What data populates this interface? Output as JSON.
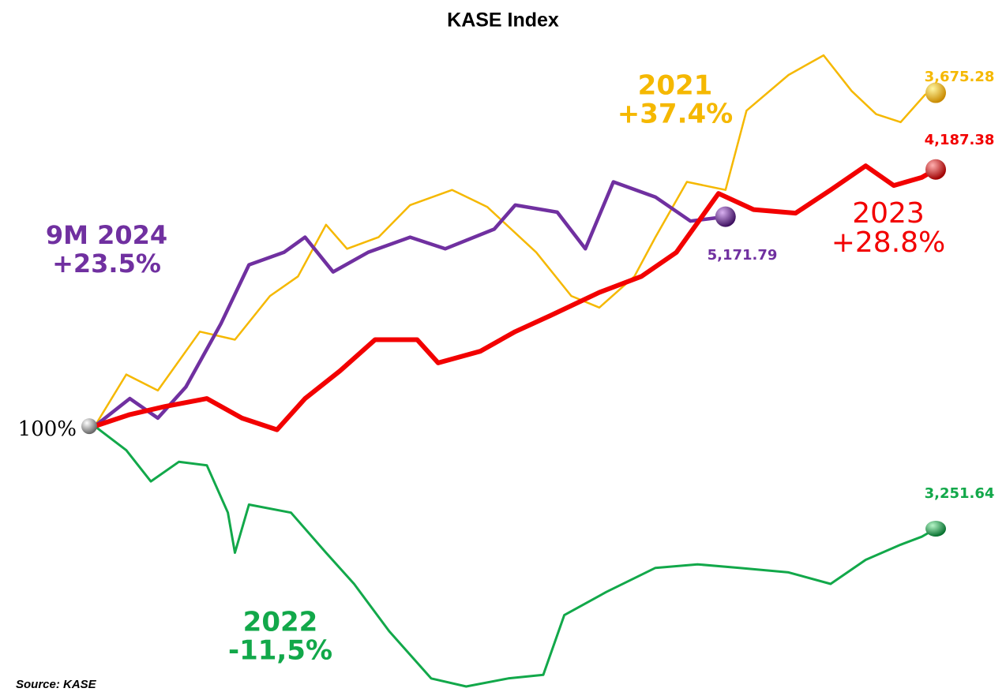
{
  "chart_data": {
    "type": "line",
    "title": "KASE Index",
    "source": "Source: KASE",
    "start_label": "100%",
    "xlim": [
      0,
      12
    ],
    "ylim": [
      70,
      144
    ],
    "series": [
      {
        "name": "2021",
        "change_label": "+37.4%",
        "end_label": "3,675.28",
        "color": "#f5b800",
        "x": [
          0,
          0.45,
          0.9,
          1.5,
          2.0,
          2.5,
          2.9,
          3.3,
          3.6,
          4.05,
          4.5,
          5.1,
          5.6,
          6.3,
          6.8,
          7.2,
          7.7,
          8.0,
          8.45,
          9.0,
          9.3,
          9.9,
          10.4,
          10.8,
          11.15,
          11.5,
          11.85,
          12
        ],
        "values": [
          100,
          105.8,
          104,
          110.6,
          109.7,
          114.6,
          116.8,
          122.6,
          119.9,
          121.2,
          124.8,
          126.5,
          124.6,
          119.5,
          114.6,
          113.3,
          116.8,
          121.2,
          127.4,
          126.5,
          135.4,
          139.4,
          141.6,
          137.6,
          135,
          134.1,
          137.2,
          137.4
        ]
      },
      {
        "name": "2022",
        "change_label": "-11,5%",
        "end_label": "3,251.64",
        "color": "#12a84a",
        "x": [
          0,
          0.45,
          0.8,
          1.2,
          1.6,
          1.9,
          2.0,
          2.2,
          2.8,
          3.3,
          3.7,
          4.2,
          4.8,
          5.3,
          5.9,
          6.4,
          6.7,
          7.3,
          8.0,
          8.6,
          9.2,
          9.9,
          10.5,
          11.0,
          11.5,
          11.8,
          12
        ],
        "values": [
          100,
          97.3,
          93.8,
          96,
          95.6,
          90.3,
          85.8,
          91.2,
          90.3,
          85.8,
          82.3,
          77,
          71.7,
          70.8,
          71.7,
          72.1,
          78.8,
          81.4,
          84.1,
          84.5,
          84.1,
          83.6,
          82.3,
          85,
          86.7,
          87.6,
          88.5
        ]
      },
      {
        "name": "2023",
        "change_label": "+28.8%",
        "end_label": "4,187.38",
        "color": "#f20000",
        "x": [
          0,
          0.5,
          1.0,
          1.6,
          2.1,
          2.6,
          3.0,
          3.5,
          4.0,
          4.6,
          4.9,
          5.5,
          6.0,
          6.5,
          7.2,
          7.8,
          8.3,
          8.9,
          9.4,
          10,
          10.5,
          11,
          11.4,
          11.8,
          12
        ],
        "values": [
          100,
          101.3,
          102.2,
          103.1,
          100.9,
          99.6,
          103.1,
          106.2,
          109.7,
          109.7,
          107.1,
          108.4,
          110.6,
          112.4,
          115,
          116.8,
          119.5,
          126.1,
          124.3,
          123.9,
          126.5,
          129.2,
          127,
          127.9,
          128.8
        ]
      },
      {
        "name": "9M 2024",
        "change_label": "+23.5%",
        "end_label": "5,171.79",
        "color": "#7030a0",
        "x": [
          0,
          0.5,
          0.9,
          1.3,
          1.8,
          2.2,
          2.7,
          3.0,
          3.4,
          3.9,
          4.5,
          5.0,
          5.7,
          6.0,
          6.6,
          7.0,
          7.4,
          8.0,
          8.5,
          9
        ],
        "values": [
          100,
          103.1,
          100.9,
          104.4,
          111.5,
          118.1,
          119.5,
          121.2,
          117.3,
          119.5,
          121.2,
          119.9,
          122.1,
          124.8,
          124,
          119.9,
          127.4,
          125.7,
          123,
          123.5
        ]
      }
    ]
  }
}
